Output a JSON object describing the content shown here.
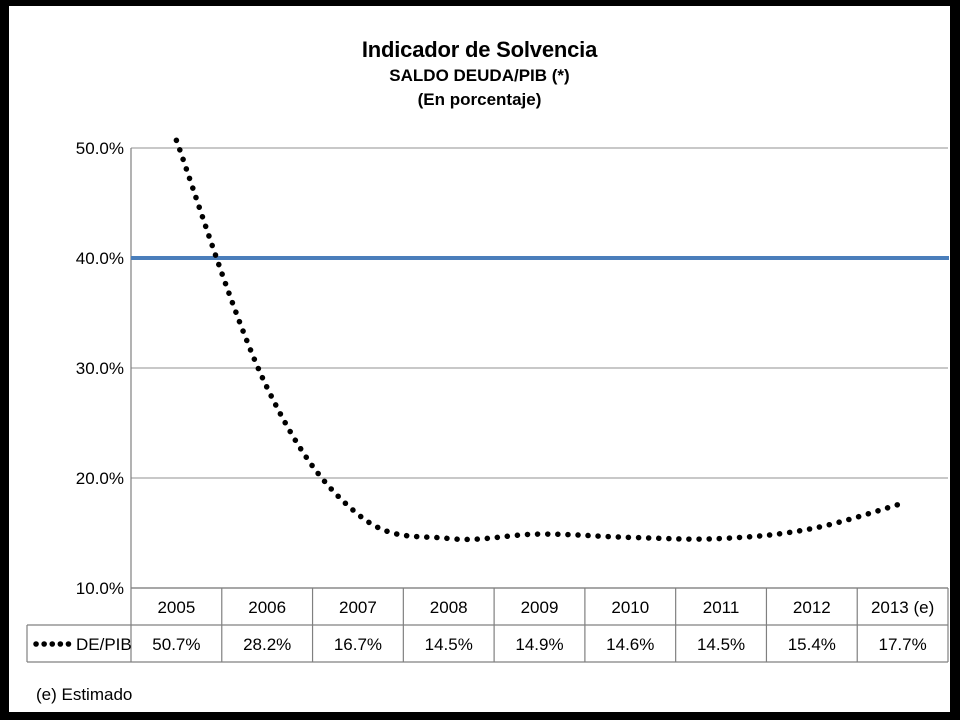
{
  "chart_data": {
    "type": "line",
    "title": "Indicador de Solvencia",
    "subtitle": "SALDO DEUDA/PIB (*)",
    "unit_label": "(En porcentaje)",
    "xlabel": "",
    "ylabel": "",
    "categories": [
      "2005",
      "2006",
      "2007",
      "2008",
      "2009",
      "2010",
      "2011",
      "2012",
      "2013 (e)"
    ],
    "series": [
      {
        "name": "DE/PIB",
        "values": [
          50.7,
          28.2,
          16.7,
          14.5,
          14.9,
          14.6,
          14.5,
          15.4,
          17.7
        ],
        "value_labels": [
          "50.7%",
          "28.2%",
          "16.7%",
          "14.5%",
          "14.9%",
          "14.6%",
          "14.5%",
          "15.4%",
          "17.7%"
        ],
        "color": "#000000",
        "style": "dotted"
      }
    ],
    "reference_line": {
      "value": 40,
      "color": "#4a7ebb"
    },
    "ylim": [
      10,
      50
    ],
    "y_ticks": [
      {
        "value": 50,
        "label": "50.0%"
      },
      {
        "value": 40,
        "label": "40.0%"
      },
      {
        "value": 30,
        "label": "30.0%"
      },
      {
        "value": 20,
        "label": "20.0%"
      },
      {
        "value": 10,
        "label": "10.0%"
      }
    ],
    "grid": true,
    "legend": "data-table-left",
    "footnote": "(e)  Estimado"
  }
}
